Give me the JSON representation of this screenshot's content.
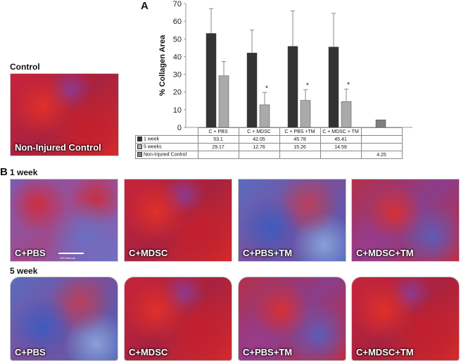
{
  "panel_a_letter": "A",
  "panel_b_letter": "B",
  "control_title": "Control",
  "control_image_label": "Non-Injured Control",
  "week1_title": "1 week",
  "week5_title": "5 week",
  "scale_bar_text": "200 microns",
  "week1_images": [
    {
      "label": "C+PBS",
      "tissue": "purple-red"
    },
    {
      "label": "C+MDSC",
      "tissue": "red-dense"
    },
    {
      "label": "C+PBS+TM",
      "tissue": "purple-blue"
    },
    {
      "label": "C+MDSC+TM",
      "tissue": "red-purple"
    }
  ],
  "week5_images": [
    {
      "label": "C+PBS",
      "tissue": "purple-blue"
    },
    {
      "label": "C+MDSC",
      "tissue": "red-dense"
    },
    {
      "label": "C+PBS+TM",
      "tissue": "red-purple"
    },
    {
      "label": "C+MDSC+TM",
      "tissue": "red-dense"
    }
  ],
  "colors": {
    "week1": "#333333",
    "week5": "#aaaaaa",
    "noninjured": "#808080"
  },
  "chart_data": {
    "type": "bar",
    "ylabel": "% Collagen Area",
    "ylim": [
      0,
      70
    ],
    "yticks": [
      0,
      10,
      20,
      30,
      40,
      50,
      60,
      70
    ],
    "categories": [
      "C + PBS",
      "C + MDSC",
      "C + PBS +TM",
      "C + MDSC + TM",
      ""
    ],
    "series": [
      {
        "name": "1 week",
        "values": [
          53.1,
          42.05,
          45.78,
          45.41,
          null
        ],
        "display": [
          "53.1",
          "42.05",
          "45.78",
          "45.41",
          ""
        ],
        "errors": [
          14,
          13,
          20,
          19,
          null
        ]
      },
      {
        "name": "5 weeks",
        "values": [
          29.17,
          12.76,
          15.26,
          14.59,
          null
        ],
        "display": [
          "29.17",
          "12.76",
          "15.26",
          "14.59",
          ""
        ],
        "errors": [
          8,
          7,
          6,
          7,
          null
        ]
      },
      {
        "name": "Non-Injured Control",
        "values": [
          null,
          null,
          null,
          null,
          4.25
        ],
        "display": [
          "",
          "",
          "",
          "",
          "4.25"
        ],
        "errors": [
          null,
          null,
          null,
          null,
          null
        ]
      }
    ],
    "significance_marker": "*",
    "significant_5week": [
      false,
      true,
      true,
      true,
      false
    ]
  }
}
